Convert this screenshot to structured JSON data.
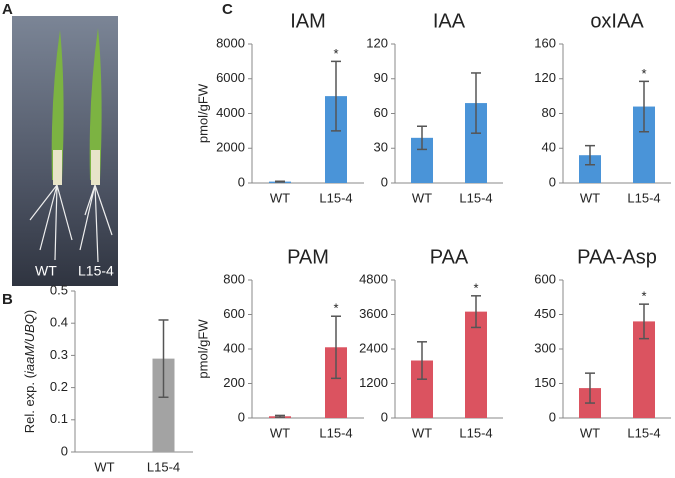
{
  "panel_labels": [
    "A",
    "B",
    "C"
  ],
  "photo_labels": [
    "WT",
    "L15-4"
  ],
  "chart_data": [
    {
      "type": "bar",
      "categories": [
        "WT",
        "L15-4"
      ],
      "values": [
        0,
        0.29
      ],
      "errors": [
        null,
        0.12
      ],
      "color": "#a3a3a3",
      "ylim": [
        0,
        0.5
      ],
      "yticks": [
        0,
        0.1,
        0.2,
        0.3,
        0.4,
        0.5
      ],
      "ylabel_parts": [
        "Rel. exp. (",
        "iaaM/UBQ",
        ")"
      ]
    },
    {
      "type": "bar",
      "title": "IAM",
      "categories": [
        "WT",
        "L15-4"
      ],
      "values": [
        80,
        5000
      ],
      "errors": [
        20,
        2000
      ],
      "annotations": [
        null,
        "*"
      ],
      "color": "#4a94d8",
      "ylim": [
        0,
        8000
      ],
      "yticks": [
        0,
        2000,
        4000,
        6000,
        8000
      ],
      "ylabel": "pmol/gFW"
    },
    {
      "type": "bar",
      "title": "IAA",
      "categories": [
        "WT",
        "L15-4"
      ],
      "values": [
        39,
        69
      ],
      "errors": [
        10,
        26
      ],
      "color": "#4a94d8",
      "ylim": [
        0,
        120
      ],
      "yticks": [
        0,
        30,
        60,
        90,
        120
      ]
    },
    {
      "type": "bar",
      "title": "oxIAA",
      "categories": [
        "WT",
        "L15-4"
      ],
      "values": [
        32,
        88
      ],
      "errors": [
        11,
        29
      ],
      "annotations": [
        null,
        "*"
      ],
      "color": "#4a94d8",
      "ylim": [
        0,
        160
      ],
      "yticks": [
        0,
        40,
        80,
        120,
        160
      ]
    },
    {
      "type": "bar",
      "title": "PAM",
      "categories": [
        "WT",
        "L15-4"
      ],
      "values": [
        10,
        410
      ],
      "errors": [
        5,
        180
      ],
      "annotations": [
        null,
        "*"
      ],
      "color": "#db5360",
      "ylim": [
        0,
        800
      ],
      "yticks": [
        0,
        200,
        400,
        600,
        800
      ],
      "ylabel": "pmol/gFW"
    },
    {
      "type": "bar",
      "title": "PAA",
      "categories": [
        "WT",
        "L15-4"
      ],
      "values": [
        2000,
        3700
      ],
      "errors": [
        650,
        550
      ],
      "annotations": [
        null,
        "*"
      ],
      "color": "#db5360",
      "ylim": [
        0,
        4800
      ],
      "yticks": [
        0,
        1200,
        2400,
        3600,
        4800
      ]
    },
    {
      "type": "bar",
      "title": "PAA-Asp",
      "categories": [
        "WT",
        "L15-4"
      ],
      "values": [
        130,
        420
      ],
      "errors": [
        65,
        75
      ],
      "annotations": [
        null,
        "*"
      ],
      "color": "#db5360",
      "ylim": [
        0,
        600
      ],
      "yticks": [
        0,
        150,
        300,
        450,
        600
      ]
    }
  ]
}
